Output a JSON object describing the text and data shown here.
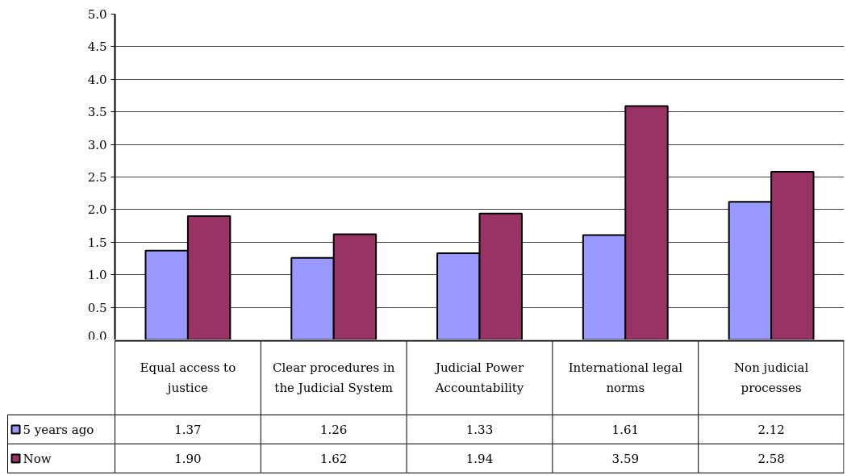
{
  "chart_data": {
    "type": "bar",
    "categories": [
      "Equal access to justice",
      "Clear procedures in the Judicial System",
      "Judicial Power Accountability",
      "International legal norms",
      "Non judicial processes"
    ],
    "series": [
      {
        "name": "5 years ago",
        "color": "#9999ff",
        "values": [
          1.37,
          1.26,
          1.33,
          1.61,
          2.12
        ],
        "value_labels": [
          "1.37",
          "1.26",
          "1.33",
          "1.61",
          "2.12"
        ]
      },
      {
        "name": "Now",
        "color": "#993366",
        "values": [
          1.9,
          1.62,
          1.94,
          3.59,
          2.58
        ],
        "value_labels": [
          "1.90",
          "1.62",
          "1.94",
          "3.59",
          "2.58"
        ]
      }
    ],
    "ylim": [
      0,
      5
    ],
    "yticks": [
      {
        "value": 0,
        "label": "0.0"
      },
      0.5,
      {
        "value": 1,
        "label": "1.0"
      },
      1.5,
      {
        "value": 2,
        "label": "2.0"
      },
      2.5,
      {
        "value": 3,
        "label": "3.0"
      },
      3.5,
      {
        "value": 4,
        "label": "4.0"
      },
      4.5,
      {
        "value": 5,
        "label": "5.0"
      }
    ],
    "grid": "y",
    "legend": "bottom"
  }
}
